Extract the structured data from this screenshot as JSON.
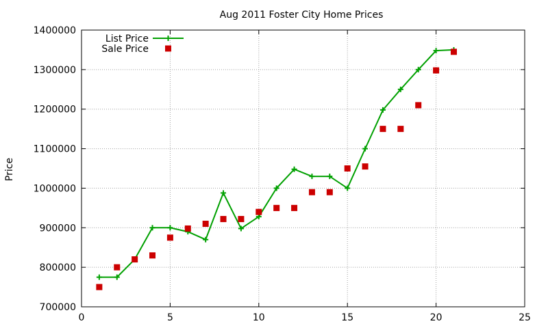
{
  "chart_data": {
    "type": "line",
    "title": "Aug 2011 Foster City Home Prices",
    "xlabel": "",
    "ylabel": "Price",
    "xlim": [
      0,
      25
    ],
    "ylim": [
      700000,
      1400000
    ],
    "x_ticks": [
      "0",
      "5",
      "10",
      "15",
      "20",
      "25"
    ],
    "y_ticks": [
      "700000",
      "800000",
      "900000",
      "1000000",
      "1100000",
      "1200000",
      "1300000",
      "1400000"
    ],
    "grid": true,
    "legend_position": "top-left",
    "series": [
      {
        "name": "List Price",
        "style": "line-with-plus-markers",
        "color": "#00a000",
        "x": [
          1,
          2,
          3,
          4,
          5,
          6,
          7,
          8,
          9,
          10,
          11,
          12,
          13,
          14,
          15,
          16,
          17,
          18,
          19,
          20,
          21
        ],
        "values": [
          775000,
          775000,
          820000,
          900000,
          900000,
          890000,
          870000,
          988000,
          898000,
          928000,
          1000000,
          1048000,
          1030000,
          1030000,
          1000000,
          1100000,
          1198000,
          1250000,
          1300000,
          1348000,
          1350000
        ]
      },
      {
        "name": "Sale Price",
        "style": "square-markers",
        "color": "#cc0000",
        "x": [
          1,
          2,
          3,
          4,
          5,
          6,
          7,
          8,
          9,
          10,
          11,
          12,
          13,
          14,
          15,
          16,
          17,
          18,
          19,
          20,
          21
        ],
        "values": [
          750000,
          800000,
          820000,
          830000,
          875000,
          898000,
          910000,
          922000,
          922000,
          940000,
          950000,
          950000,
          990000,
          990000,
          1050000,
          1055000,
          1150000,
          1150000,
          1210000,
          1298000,
          1345000
        ]
      }
    ]
  }
}
